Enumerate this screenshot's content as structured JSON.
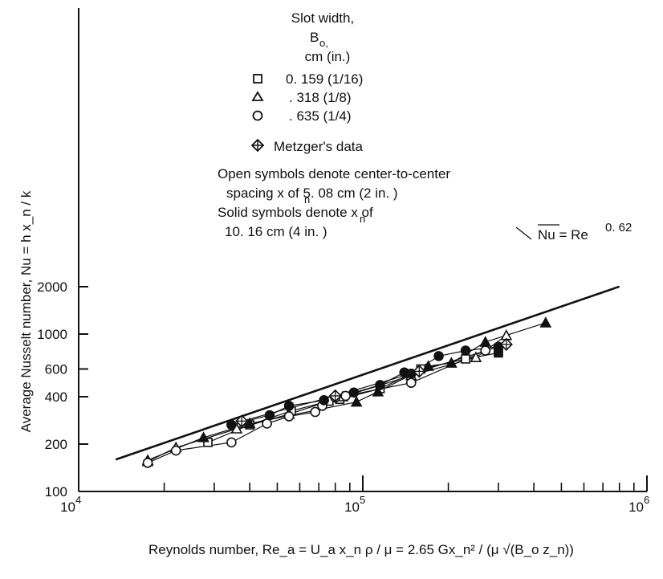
{
  "chart_data": {
    "type": "scatter",
    "x_scale": "log",
    "y_scale": "log",
    "xlim": [
      10000,
      1000000
    ],
    "ylim": [
      100,
      3000
    ],
    "xlabel": "Reynolds number, Re_a = U_a x_n ρ / μ = 2.65 Gx_n² / (μ √(B_o z_n))",
    "ylabel": "Average Nusselt number, Nu = h x_n / k",
    "x_tick_labels": [
      {
        "value": 10000,
        "base": "10",
        "exp": "4"
      },
      {
        "value": 100000,
        "base": "10",
        "exp": "5"
      },
      {
        "value": 1000000,
        "base": "10",
        "exp": "6"
      }
    ],
    "y_tick_labels": [
      {
        "value": 100,
        "label": "100"
      },
      {
        "value": 200,
        "label": "200"
      },
      {
        "value": 400,
        "label": "400"
      },
      {
        "value": 600,
        "label": "600"
      },
      {
        "value": 1000,
        "label": "1000"
      },
      {
        "value": 2000,
        "label": "2000"
      }
    ],
    "legend": {
      "title_lines": [
        "Slot width,",
        "B",
        "cm (in.)"
      ],
      "title_sub": "o,",
      "items": [
        {
          "symbol": "square",
          "label": "0. 159 (1/16)"
        },
        {
          "symbol": "triangle",
          "label": ". 318 (1/8)"
        },
        {
          "symbol": "circle",
          "label": ". 635 (1/4)"
        },
        {
          "symbol": "metzger",
          "label": "Metzger's data"
        }
      ],
      "notes": [
        "Open symbols denote center-to-center",
        "spacing  x  of 5. 08 cm (2 in. )",
        "Solid symbols denote  x  of",
        "10. 16 cm (4 in. )"
      ]
    },
    "fit_line": {
      "label": "Nu = Re",
      "exponent": "0. 62",
      "x_range": [
        13500,
        800000
      ],
      "coef": 0.4385,
      "power": 0.62
    },
    "series": [
      {
        "name": "0. 159 (1/16)",
        "symbol": "square",
        "filled": false,
        "points": [
          [
            28500,
            205
          ],
          [
            40000,
            265
          ],
          [
            56000,
            325
          ],
          [
            76000,
            375
          ],
          [
            83000,
            385
          ],
          [
            115000,
            450
          ],
          [
            160000,
            600
          ],
          [
            230000,
            695
          ],
          [
            300000,
            760
          ]
        ]
      },
      {
        "name": "0. 159 (1/16)",
        "symbol": "square",
        "filled": true,
        "points": [
          [
            300000,
            760
          ]
        ]
      },
      {
        "name": ". 318 (1/8)",
        "symbol": "triangle",
        "filled": false,
        "points": [
          [
            17500,
            155
          ],
          [
            22000,
            190
          ],
          [
            36000,
            250
          ],
          [
            55000,
            310
          ],
          [
            85000,
            400
          ],
          [
            148000,
            545
          ],
          [
            250000,
            710
          ],
          [
            320000,
            980
          ]
        ]
      },
      {
        "name": ". 318 (1/8)",
        "symbol": "triangle",
        "filled": true,
        "points": [
          [
            17500,
            158
          ],
          [
            27500,
            220
          ],
          [
            40000,
            270
          ],
          [
            95000,
            370
          ],
          [
            113000,
            430
          ],
          [
            170000,
            625
          ],
          [
            205000,
            655
          ],
          [
            270000,
            890
          ],
          [
            440000,
            1180
          ]
        ]
      },
      {
        "name": ". 635 (1/4)",
        "symbol": "circle",
        "filled": false,
        "points": [
          [
            17500,
            152
          ],
          [
            22000,
            182
          ],
          [
            34500,
            205
          ],
          [
            46000,
            270
          ],
          [
            55000,
            300
          ],
          [
            68000,
            320
          ],
          [
            72000,
            350
          ],
          [
            80000,
            395
          ],
          [
            87000,
            405
          ],
          [
            148000,
            490
          ],
          [
            270000,
            785
          ]
        ]
      },
      {
        "name": ". 635 (1/4)",
        "symbol": "circle",
        "filled": true,
        "points": [
          [
            34500,
            265
          ],
          [
            47000,
            305
          ],
          [
            55000,
            350
          ],
          [
            73000,
            380
          ],
          [
            93000,
            425
          ],
          [
            115000,
            475
          ],
          [
            140000,
            570
          ],
          [
            148000,
            560
          ],
          [
            185000,
            725
          ],
          [
            230000,
            785
          ],
          [
            300000,
            830
          ]
        ]
      },
      {
        "name": "Metzger's data",
        "symbol": "metzger",
        "filled": false,
        "points": [
          [
            37500,
            280
          ],
          [
            80000,
            405
          ],
          [
            158000,
            580
          ],
          [
            320000,
            860
          ]
        ]
      }
    ]
  }
}
